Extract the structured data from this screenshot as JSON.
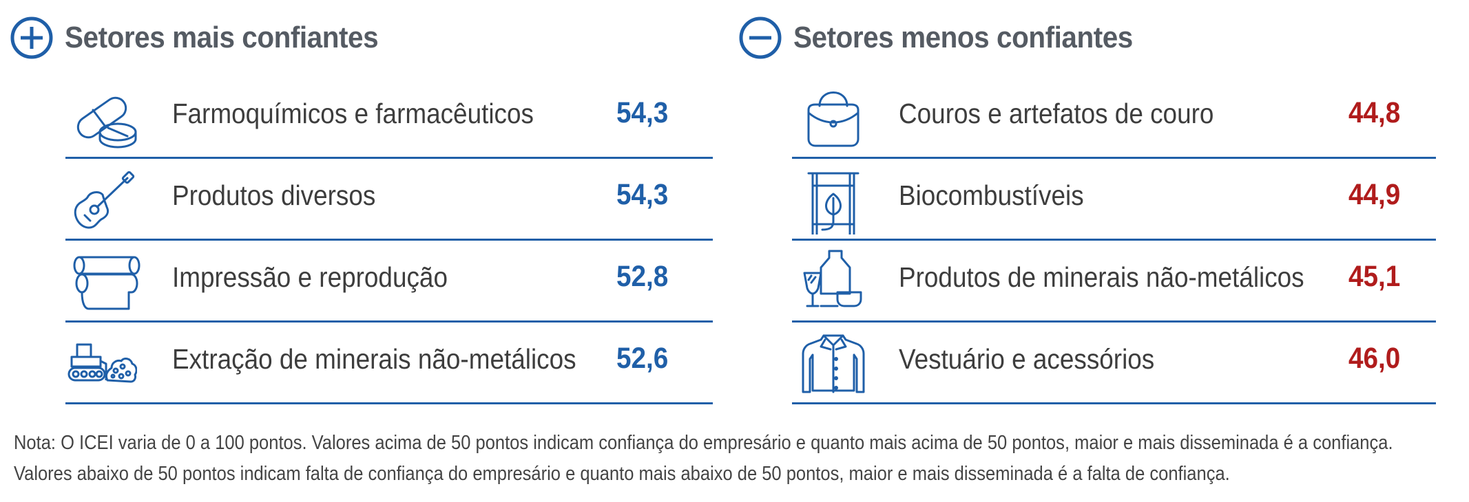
{
  "left_panel": {
    "title": "Setores mais confiantes",
    "icon": "plus-circle-icon",
    "accent_color": "#1f5fa8",
    "rows": [
      {
        "label": "Farmoquímicos e farmacêuticos",
        "value": "54,3",
        "icon": "pills-icon"
      },
      {
        "label": "Produtos diversos",
        "value": "54,3",
        "icon": "guitar-icon"
      },
      {
        "label": "Impressão e reprodução",
        "value": "52,8",
        "icon": "paper-roll-icon"
      },
      {
        "label": "Extração de minerais não-metálicos",
        "value": "52,6",
        "icon": "bulldozer-icon"
      }
    ]
  },
  "right_panel": {
    "title": "Setores menos confiantes",
    "icon": "minus-circle-icon",
    "value_color": "#b01c1c",
    "rows": [
      {
        "label": "Couros e artefatos de couro",
        "value": "44,8",
        "icon": "handbag-icon"
      },
      {
        "label": "Biocombustíveis",
        "value": "44,9",
        "icon": "biofuel-barrel-icon"
      },
      {
        "label": "Produtos de minerais não-metálicos",
        "value": "45,1",
        "icon": "glassware-icon"
      },
      {
        "label": "Vestuário e acessórios",
        "value": "46,0",
        "icon": "shirt-icon"
      }
    ]
  },
  "note": {
    "line1": "Nota: O ICEI varia de 0 a 100 pontos. Valores acima de 50 pontos indicam confiança do empresário e quanto mais acima de 50 pontos, maior e mais disseminada é a confiança.",
    "line2": "Valores abaixo de 50 pontos indicam falta de confiança do empresário e quanto mais abaixo de 50 pontos, maior e mais disseminada é a falta de confiança."
  }
}
